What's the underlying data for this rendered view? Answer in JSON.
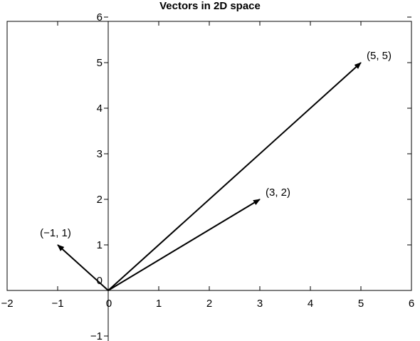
{
  "chart_data": {
    "type": "vector",
    "title": "Vectors in 2D space",
    "xlabel": "",
    "ylabel": "",
    "xlim": [
      -2,
      6
    ],
    "ylim": [
      -1,
      6
    ],
    "xticks": [
      -2,
      -1,
      0,
      1,
      2,
      3,
      4,
      5,
      6
    ],
    "yticks": [
      -1,
      0,
      1,
      2,
      3,
      4,
      5,
      6
    ],
    "xtick_labels": [
      "−2",
      "−1",
      "0",
      "1",
      "2",
      "3",
      "4",
      "5",
      "6"
    ],
    "ytick_labels": [
      "−1",
      "0",
      "1",
      "2",
      "3",
      "4",
      "5",
      "6"
    ],
    "grid": false,
    "vectors": [
      {
        "x0": 0,
        "y0": 0,
        "x": 5,
        "y": 5,
        "label": "(5, 5)"
      },
      {
        "x0": 0,
        "y0": 0,
        "x": 3,
        "y": 2,
        "label": "(3, 2)"
      },
      {
        "x0": 0,
        "y0": 0,
        "x": -1,
        "y": 1,
        "label": "(−1, 1)"
      }
    ]
  }
}
